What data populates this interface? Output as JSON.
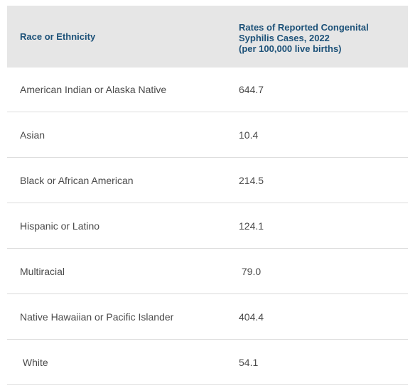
{
  "table": {
    "headers": [
      "Race or Ethnicity",
      "Rates of Reported Congenital\nSyphilis Cases, 2022\n(per 100,000 live births)"
    ],
    "rows": [
      [
        "American Indian or Alaska Native",
        "644.7"
      ],
      [
        "Asian",
        "10.4"
      ],
      [
        "Black or African American",
        "214.5"
      ],
      [
        "Hispanic or Latino",
        "124.1"
      ],
      [
        "Multiracial",
        " 79.0"
      ],
      [
        "Native Hawaiian or Pacific Islander",
        "404.4"
      ],
      [
        " White",
        "54.1"
      ]
    ]
  },
  "colors": {
    "header_bg": "#e6e6e6",
    "header_text": "#1c5178",
    "body_text": "#4a4a4a",
    "row_border": "#dcdcdc"
  }
}
